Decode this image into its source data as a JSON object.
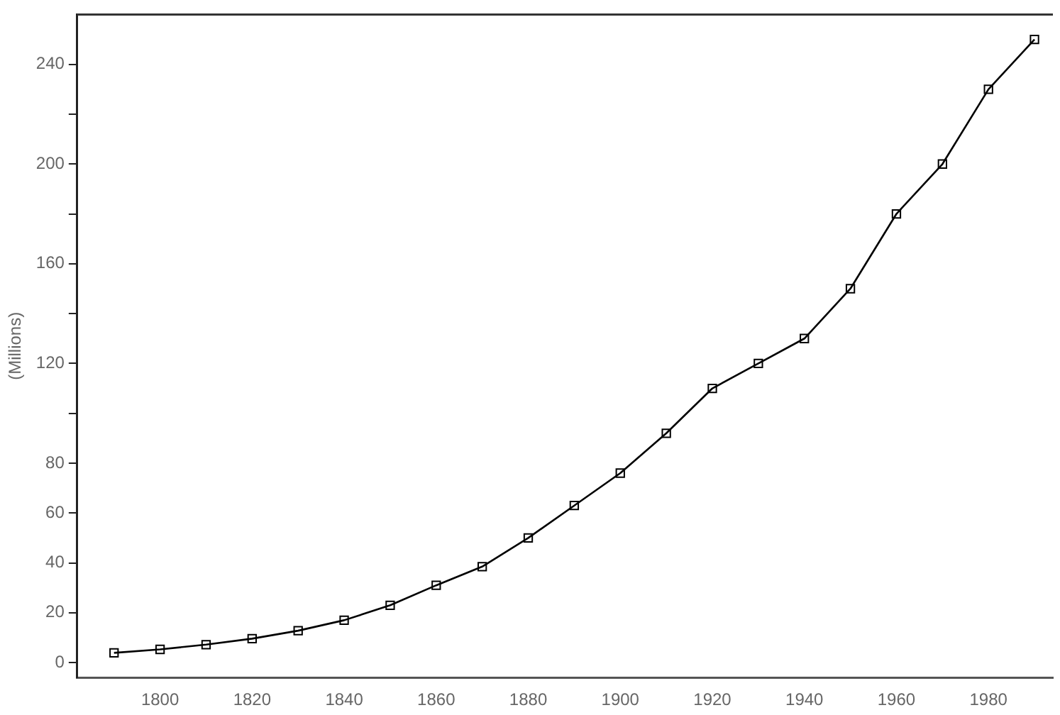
{
  "chart_data": {
    "type": "line",
    "ylabel": "(Millions)",
    "x": [
      1790,
      1800,
      1810,
      1820,
      1830,
      1840,
      1850,
      1860,
      1870,
      1880,
      1890,
      1900,
      1910,
      1920,
      1930,
      1940,
      1950,
      1960,
      1970,
      1980,
      1990
    ],
    "series": [
      {
        "color": "#000000",
        "values": [
          3.9,
          5.3,
          7.2,
          9.6,
          12.8,
          17,
          23,
          31,
          38.5,
          50,
          63,
          76,
          92,
          110,
          120,
          130,
          150,
          180,
          200,
          230,
          250
        ]
      }
    ],
    "xlim": [
      1782,
      1994
    ],
    "xticks": [
      1800,
      1820,
      1840,
      1860,
      1880,
      1900,
      1920,
      1940,
      1960,
      1980
    ],
    "ylim": [
      -6,
      260
    ],
    "yticks": [
      0,
      20,
      40,
      60,
      80,
      {
        "value": 100,
        "label": null
      },
      120,
      {
        "value": 140,
        "label": null
      },
      160,
      {
        "value": 180,
        "label": null
      },
      200,
      {
        "value": 220,
        "label": null
      },
      240
    ],
    "marker": "square",
    "line_style": "solid",
    "grid": false,
    "legend": false
  }
}
